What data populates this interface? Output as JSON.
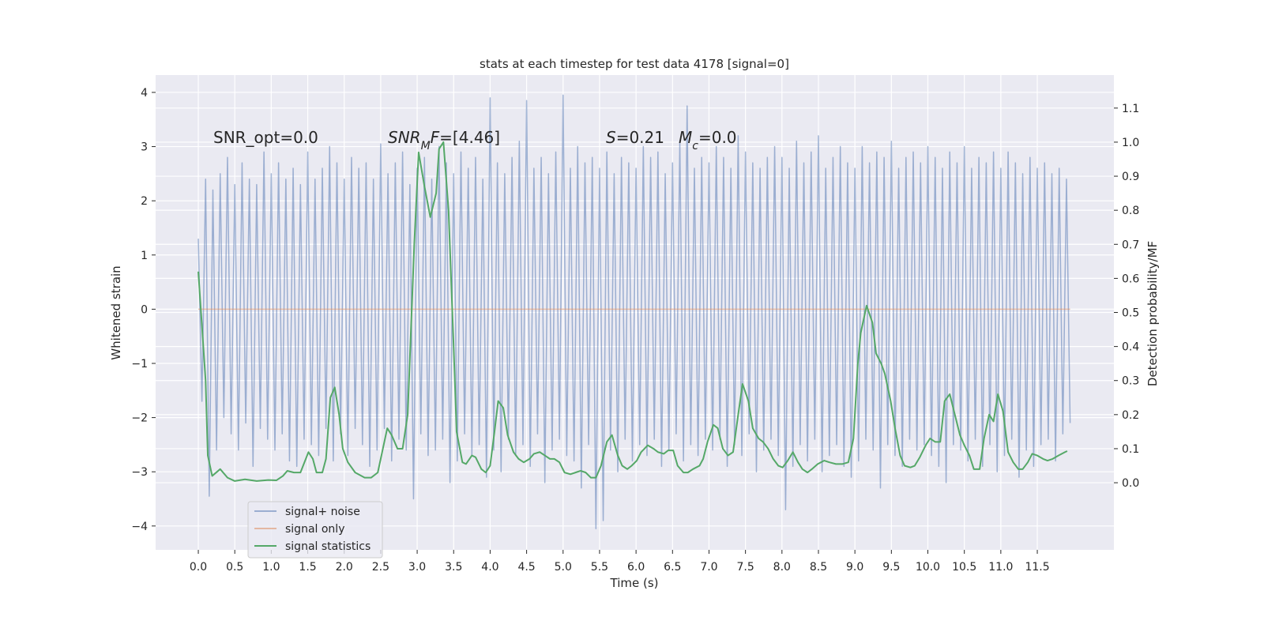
{
  "chart_data": {
    "type": "line",
    "title": "stats at each timestep for test data 4178 [signal=0]",
    "xlabel": "Time (s)",
    "ylabel": "Whitened strain",
    "y2label": "Detection probability/MF",
    "xlim": [
      -0.585,
      12.55
    ],
    "ylim": [
      -4.44,
      4.32
    ],
    "y2lim": [
      -0.197,
      1.197
    ],
    "xticks": [
      {
        "value": 0,
        "label": "0.0"
      },
      0.5,
      {
        "value": 1,
        "label": "1.0"
      },
      1.5,
      {
        "value": 2,
        "label": "2.0"
      },
      2.5,
      {
        "value": 3,
        "label": "3.0"
      },
      3.5,
      {
        "value": 4,
        "label": "4.0"
      },
      4.5,
      {
        "value": 5,
        "label": "5.0"
      },
      5.5,
      {
        "value": 6,
        "label": "6.0"
      },
      6.5,
      {
        "value": 7,
        "label": "7.0"
      },
      7.5,
      {
        "value": 8,
        "label": "8.0"
      },
      8.5,
      {
        "value": 9,
        "label": "9.0"
      },
      9.5,
      {
        "value": 10,
        "label": "10.0"
      },
      10.5,
      {
        "value": 11,
        "label": "11.0"
      },
      11.5
    ],
    "yticks": [
      {
        "value": -4,
        "label": "−4"
      },
      {
        "value": -3,
        "label": "−3"
      },
      {
        "value": -2,
        "label": "−2"
      },
      {
        "value": -1,
        "label": "−1"
      },
      0,
      1,
      2,
      3,
      4
    ],
    "y2ticks": [
      {
        "value": 0,
        "label": "0.0"
      },
      0.1,
      0.2,
      0.3,
      0.4,
      0.5,
      0.6,
      0.7,
      0.8,
      0.9,
      {
        "value": 1,
        "label": "1.0"
      },
      1.1
    ],
    "grid": true,
    "legend": "lower left",
    "annotations": [
      [
        {
          "t": "SNR_opt=0.0"
        }
      ],
      [
        {
          "t": "SNR",
          "i": true
        },
        {
          "t": "M",
          "i": true,
          "sub": true
        },
        {
          "t": "F",
          "i": true
        },
        {
          "t": "=[4.46]"
        }
      ],
      [
        {
          "t": "S",
          "i": true
        },
        {
          "t": "=0.21"
        }
      ],
      [
        {
          "t": "M",
          "i": true
        },
        {
          "t": "c",
          "i": true,
          "sub": true
        },
        {
          "t": "=0.0"
        }
      ]
    ],
    "series": [
      {
        "name": "signal+ noise",
        "color": "#4c72b0",
        "opacity": 0.5,
        "x": [
          0,
          0.05,
          0.1,
          0.15,
          0.2,
          0.25,
          0.3,
          0.35,
          0.4,
          0.45,
          0.5,
          0.55,
          0.6,
          0.65,
          0.7,
          0.75,
          0.8,
          0.85,
          0.9,
          0.95,
          1,
          1.05,
          1.1,
          1.15,
          1.2,
          1.25,
          1.3,
          1.35,
          1.4,
          1.45,
          1.5,
          1.55,
          1.6,
          1.65,
          1.7,
          1.75,
          1.8,
          1.85,
          1.9,
          1.95,
          2,
          2.05,
          2.1,
          2.15,
          2.2,
          2.25,
          2.3,
          2.35,
          2.4,
          2.45,
          2.5,
          2.55,
          2.6,
          2.65,
          2.7,
          2.75,
          2.8,
          2.85,
          2.9,
          2.95,
          3,
          3.05,
          3.1,
          3.15,
          3.2,
          3.25,
          3.3,
          3.35,
          3.4,
          3.45,
          3.5,
          3.55,
          3.6,
          3.65,
          3.7,
          3.75,
          3.8,
          3.85,
          3.9,
          3.95,
          4,
          4.05,
          4.1,
          4.15,
          4.2,
          4.25,
          4.3,
          4.35,
          4.4,
          4.45,
          4.5,
          4.55,
          4.6,
          4.65,
          4.7,
          4.75,
          4.8,
          4.85,
          4.9,
          4.95,
          5,
          5.05,
          5.1,
          5.15,
          5.2,
          5.25,
          5.3,
          5.35,
          5.4,
          5.45,
          5.5,
          5.55,
          5.6,
          5.65,
          5.7,
          5.75,
          5.8,
          5.85,
          5.9,
          5.95,
          6,
          6.05,
          6.1,
          6.15,
          6.2,
          6.25,
          6.3,
          6.35,
          6.4,
          6.45,
          6.5,
          6.55,
          6.6,
          6.65,
          6.7,
          6.75,
          6.8,
          6.85,
          6.9,
          6.95,
          7,
          7.05,
          7.1,
          7.15,
          7.2,
          7.25,
          7.3,
          7.35,
          7.4,
          7.45,
          7.5,
          7.55,
          7.6,
          7.65,
          7.7,
          7.75,
          7.8,
          7.85,
          7.9,
          7.95,
          8,
          8.05,
          8.1,
          8.15,
          8.2,
          8.25,
          8.3,
          8.35,
          8.4,
          8.45,
          8.5,
          8.55,
          8.6,
          8.65,
          8.7,
          8.75,
          8.8,
          8.85,
          8.9,
          8.95,
          9,
          9.05,
          9.1,
          9.15,
          9.2,
          9.25,
          9.3,
          9.35,
          9.4,
          9.45,
          9.5,
          9.55,
          9.6,
          9.65,
          9.7,
          9.75,
          9.8,
          9.85,
          9.9,
          9.95,
          10,
          10.05,
          10.1,
          10.15,
          10.2,
          10.25,
          10.3,
          10.35,
          10.4,
          10.45,
          10.5,
          10.55,
          10.6,
          10.65,
          10.7,
          10.75,
          10.8,
          10.85,
          10.9,
          10.95,
          11,
          11.05,
          11.1,
          11.15,
          11.2,
          11.25,
          11.3,
          11.35,
          11.4,
          11.45,
          11.5,
          11.55,
          11.6,
          11.65,
          11.7,
          11.75,
          11.8,
          11.85,
          11.9,
          11.95
        ],
        "values": [
          1.3,
          -1.7,
          2.4,
          -3.45,
          2.2,
          -2.6,
          2.5,
          -2.0,
          2.8,
          -2.3,
          2.3,
          -2.6,
          2.7,
          -2.1,
          2.4,
          -2.9,
          2.3,
          -2.2,
          2.9,
          -2.4,
          2.5,
          -2.6,
          2.7,
          -2.3,
          2.4,
          -2.8,
          2.6,
          -2.9,
          2.3,
          -2.4,
          2.9,
          -2.5,
          2.4,
          -2.7,
          2.6,
          -2.2,
          3.0,
          -2.8,
          2.7,
          -2.3,
          2.4,
          -2.7,
          2.8,
          -2.2,
          2.6,
          -2.5,
          2.7,
          -2.9,
          2.4,
          -2.6,
          3.05,
          -2.2,
          2.5,
          -2.8,
          2.7,
          -2.4,
          2.9,
          -2.6,
          2.3,
          -3.5,
          2.6,
          -2.3,
          2.8,
          -2.7,
          2.4,
          -2.6,
          3.0,
          -2.4,
          2.7,
          -3.2,
          2.5,
          -2.8,
          2.9,
          -2.3,
          2.6,
          -2.7,
          2.8,
          -2.5,
          2.4,
          -3.1,
          3.9,
          -2.6,
          2.7,
          -3.0,
          2.5,
          -2.4,
          2.8,
          -2.7,
          3.1,
          -2.5,
          3.85,
          -2.9,
          2.6,
          -2.3,
          2.8,
          -3.2,
          2.5,
          -2.6,
          2.9,
          -2.4,
          3.95,
          -2.7,
          2.6,
          -2.8,
          3.0,
          -3.3,
          2.7,
          -2.5,
          2.8,
          -4.05,
          2.6,
          -3.9,
          2.9,
          -2.6,
          2.5,
          -3.0,
          2.8,
          -2.4,
          2.7,
          -2.8,
          2.6,
          -2.5,
          3.0,
          -2.7,
          2.8,
          -2.4,
          2.9,
          -2.9,
          2.5,
          -2.6,
          2.7,
          -2.3,
          3.1,
          -2.8,
          3.75,
          -2.5,
          2.6,
          -2.7,
          2.8,
          -2.4,
          2.7,
          -2.6,
          3.0,
          -2.4,
          2.8,
          -2.9,
          2.6,
          -2.5,
          3.2,
          -2.7,
          2.9,
          -2.3,
          2.7,
          -3.0,
          2.6,
          -2.6,
          2.8,
          -2.4,
          3.0,
          -2.7,
          2.8,
          -3.7,
          2.6,
          -2.9,
          3.1,
          -2.5,
          2.7,
          -2.8,
          2.9,
          -2.4,
          3.2,
          -3.0,
          2.6,
          -2.7,
          2.8,
          -2.5,
          3.0,
          -2.9,
          2.7,
          -3.1,
          2.6,
          -2.8,
          3.0,
          -2.4,
          2.7,
          -2.6,
          2.9,
          -3.3,
          2.8,
          -2.5,
          3.1,
          -2.7,
          2.6,
          -2.9,
          2.8,
          -2.4,
          2.9,
          -2.6,
          2.7,
          -2.5,
          3.0,
          -2.7,
          2.8,
          -2.9,
          2.6,
          -3.2,
          2.9,
          -2.5,
          2.7,
          -2.6,
          3.0,
          -2.8,
          2.6,
          -2.4,
          2.8,
          -2.9,
          2.7,
          -2.5,
          2.9,
          -3.0,
          2.6,
          -2.7,
          2.9,
          -2.4,
          2.7,
          -3.1,
          2.5,
          -2.6,
          2.8,
          -2.9,
          2.6,
          -2.5,
          2.7,
          -2.4,
          2.5,
          -2.8,
          2.6,
          -2.3,
          2.4,
          -2.1
        ]
      },
      {
        "name": "signal only",
        "color": "#dd8452",
        "opacity": 0.5,
        "x": [
          0,
          11.95
        ],
        "values": [
          0,
          0
        ]
      },
      {
        "name": "signal statistics",
        "color": "#55a868",
        "opacity": 1,
        "axis": "y2",
        "x": [
          0,
          0.1,
          0.13,
          0.19,
          0.3,
          0.4,
          0.5,
          0.64,
          0.8,
          0.96,
          1.07,
          1.16,
          1.22,
          1.31,
          1.4,
          1.51,
          1.57,
          1.62,
          1.7,
          1.75,
          1.81,
          1.87,
          1.93,
          1.98,
          2.05,
          2.15,
          2.28,
          2.37,
          2.46,
          2.51,
          2.59,
          2.65,
          2.73,
          2.8,
          2.87,
          2.96,
          3.02,
          3.1,
          3.18,
          3.26,
          3.3,
          3.36,
          3.43,
          3.5,
          3.54,
          3.62,
          3.67,
          3.75,
          3.8,
          3.88,
          3.94,
          4,
          4.06,
          4.11,
          4.18,
          4.24,
          4.32,
          4.39,
          4.46,
          4.54,
          4.6,
          4.68,
          4.75,
          4.82,
          4.88,
          4.95,
          5.02,
          5.1,
          5.17,
          5.24,
          5.31,
          5.38,
          5.45,
          5.52,
          5.6,
          5.67,
          5.75,
          5.81,
          5.88,
          5.94,
          6.01,
          6.07,
          6.16,
          6.24,
          6.3,
          6.38,
          6.44,
          6.51,
          6.57,
          6.65,
          6.71,
          6.78,
          6.87,
          6.92,
          6.98,
          7.06,
          7.12,
          7.19,
          7.26,
          7.33,
          7.4,
          7.46,
          7.54,
          7.6,
          7.68,
          7.74,
          7.81,
          7.88,
          7.95,
          8.01,
          8.08,
          8.15,
          8.22,
          8.28,
          8.35,
          8.41,
          8.49,
          8.58,
          8.65,
          8.74,
          8.83,
          8.91,
          8.98,
          9.04,
          9.08,
          9.16,
          9.24,
          9.29,
          9.36,
          9.41,
          9.49,
          9.55,
          9.62,
          9.68,
          9.76,
          9.82,
          9.89,
          9.97,
          10.03,
          10.1,
          10.17,
          10.23,
          10.3,
          10.37,
          10.44,
          10.5,
          10.57,
          10.63,
          10.71,
          10.77,
          10.84,
          10.9,
          10.96,
          11.03,
          11.1,
          11.17,
          11.24,
          11.3,
          11.37,
          11.43,
          11.5,
          11.58,
          11.64,
          11.71,
          11.79,
          11.88,
          11.91
        ],
        "values": [
          0.62,
          0.3,
          0.08,
          0.02,
          0.04,
          0.015,
          0.005,
          0.01,
          0.005,
          0.008,
          0.007,
          0.02,
          0.035,
          0.03,
          0.03,
          0.09,
          0.07,
          0.03,
          0.03,
          0.07,
          0.25,
          0.28,
          0.2,
          0.1,
          0.06,
          0.03,
          0.015,
          0.015,
          0.03,
          0.08,
          0.16,
          0.14,
          0.1,
          0.1,
          0.2,
          0.7,
          0.97,
          0.87,
          0.78,
          0.85,
          0.98,
          1.0,
          0.8,
          0.4,
          0.15,
          0.06,
          0.055,
          0.08,
          0.075,
          0.04,
          0.03,
          0.05,
          0.15,
          0.24,
          0.22,
          0.14,
          0.09,
          0.07,
          0.06,
          0.07,
          0.085,
          0.09,
          0.08,
          0.07,
          0.07,
          0.06,
          0.03,
          0.025,
          0.03,
          0.035,
          0.03,
          0.015,
          0.015,
          0.05,
          0.12,
          0.14,
          0.08,
          0.05,
          0.04,
          0.05,
          0.065,
          0.09,
          0.11,
          0.1,
          0.09,
          0.085,
          0.095,
          0.095,
          0.05,
          0.03,
          0.03,
          0.04,
          0.05,
          0.07,
          0.12,
          0.17,
          0.16,
          0.1,
          0.08,
          0.09,
          0.2,
          0.29,
          0.24,
          0.16,
          0.13,
          0.12,
          0.1,
          0.07,
          0.05,
          0.045,
          0.065,
          0.09,
          0.06,
          0.04,
          0.03,
          0.04,
          0.055,
          0.065,
          0.06,
          0.055,
          0.055,
          0.06,
          0.13,
          0.35,
          0.44,
          0.52,
          0.47,
          0.38,
          0.35,
          0.32,
          0.24,
          0.16,
          0.08,
          0.05,
          0.045,
          0.05,
          0.075,
          0.11,
          0.13,
          0.12,
          0.12,
          0.24,
          0.26,
          0.2,
          0.14,
          0.11,
          0.08,
          0.04,
          0.04,
          0.13,
          0.2,
          0.18,
          0.26,
          0.21,
          0.09,
          0.06,
          0.04,
          0.04,
          0.06,
          0.085,
          0.08,
          0.07,
          0.065,
          0.07,
          0.08,
          0.09,
          0.093
        ]
      }
    ]
  }
}
